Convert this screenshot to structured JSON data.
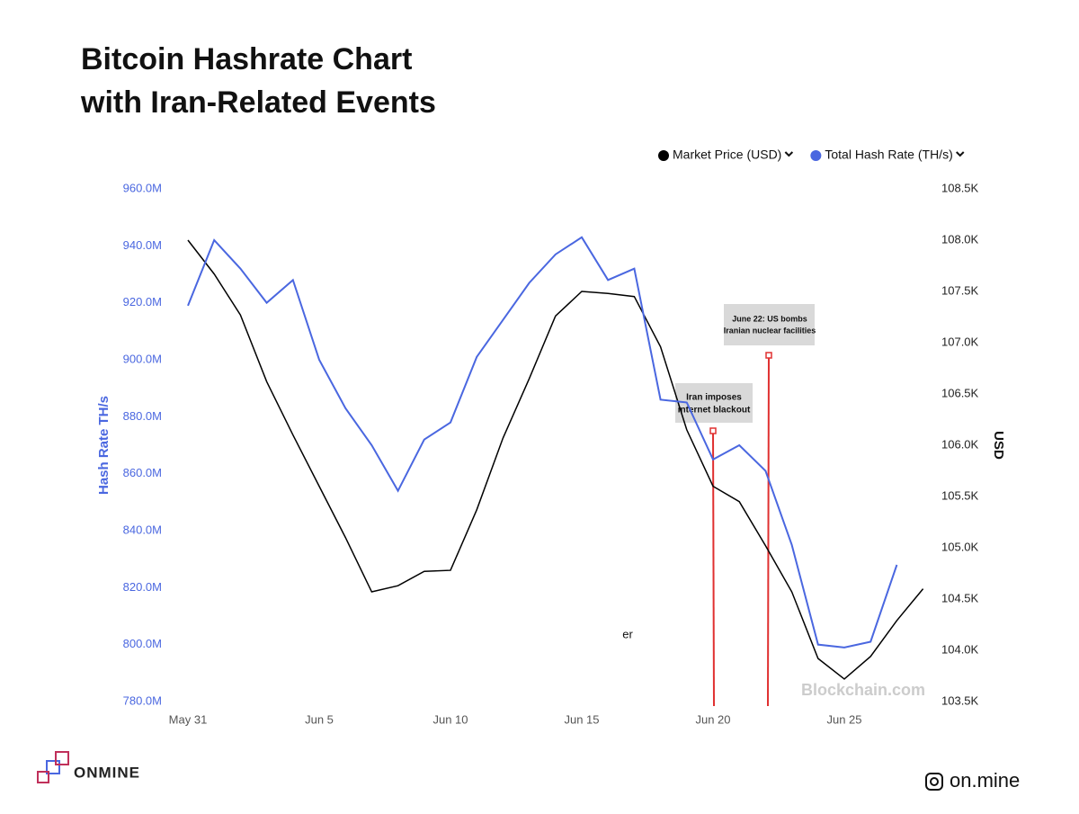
{
  "chart_data": {
    "type": "line",
    "title": "Bitcoin Hashrate Chart",
    "subtitle": "with Iran-Related Events",
    "y_label": "Hash Rate TH/s",
    "y2_label": "USD",
    "categories": [
      "May 31",
      null,
      null,
      null,
      null,
      "Jun 5",
      null,
      null,
      null,
      null,
      "Jun 10",
      null,
      null,
      null,
      null,
      "Jun 15",
      null,
      null,
      null,
      null,
      "Jun 20",
      null,
      null,
      null,
      null,
      "Jun 25",
      null,
      null,
      null
    ],
    "series": [
      {
        "name": "Market Price (USD)",
        "color": "#000000",
        "axis": "y2",
        "values": [
          108000,
          107670,
          107270,
          106620,
          106100,
          105600,
          105100,
          104570,
          104630,
          104770,
          104780,
          105370,
          106070,
          106650,
          107260,
          107500,
          107480,
          107450,
          106960,
          106150,
          105600,
          105450,
          105020,
          104570,
          103920,
          103720,
          103940,
          104290,
          104600
        ]
      },
      {
        "name": "Total Hash Rate (TH/s)",
        "color": "#4a67e0",
        "values": [
          919000000,
          942000000,
          932000000,
          920000000,
          928000000,
          900000000,
          883000000,
          870000000,
          854000000,
          872000000,
          878000000,
          901000000,
          914000000,
          927000000,
          937000000,
          943000000,
          928000000,
          932000000,
          886000000,
          885000000,
          865000000,
          870000000,
          861000000,
          835000000,
          800000000,
          799000000,
          801000000,
          828000000,
          null
        ]
      }
    ],
    "ylim": [
      780000000,
      960000000
    ],
    "yticks": [
      {
        "value": 960000000,
        "label": "960.0M"
      },
      {
        "value": 940000000,
        "label": "940.0M"
      },
      {
        "value": 920000000,
        "label": "920.0M"
      },
      {
        "value": 900000000,
        "label": "900.0M"
      },
      {
        "value": 880000000,
        "label": "880.0M"
      },
      {
        "value": 860000000,
        "label": "860.0M"
      },
      {
        "value": 840000000,
        "label": "840.0M"
      },
      {
        "value": 820000000,
        "label": "820.0M"
      },
      {
        "value": 800000000,
        "label": "800.0M"
      },
      {
        "value": 780000000,
        "label": "780.0M"
      }
    ],
    "y2lim": [
      103500,
      108500
    ],
    "y2ticks": [
      {
        "value": 108500,
        "label": "108.5K"
      },
      {
        "value": 108000,
        "label": "108.0K"
      },
      {
        "value": 107500,
        "label": "107.5K"
      },
      {
        "value": 107000,
        "label": "107.0K"
      },
      {
        "value": 106500,
        "label": "106.5K"
      },
      {
        "value": 106000,
        "label": "106.0K"
      },
      {
        "value": 105500,
        "label": "105.5K"
      },
      {
        "value": 105000,
        "label": "105.0K"
      },
      {
        "value": 104500,
        "label": "104.5K"
      },
      {
        "value": 104000,
        "label": "104.0K"
      },
      {
        "value": 103500,
        "label": "103.5K"
      }
    ],
    "annotations": [
      "Iran imposes",
      "internet blackout",
      "June 22: US bombs",
      "Iranian nuclear facilities",
      "er"
    ],
    "watermark": "Blockchain.com",
    "brand": "ONMINE",
    "handle": "on.mine"
  }
}
